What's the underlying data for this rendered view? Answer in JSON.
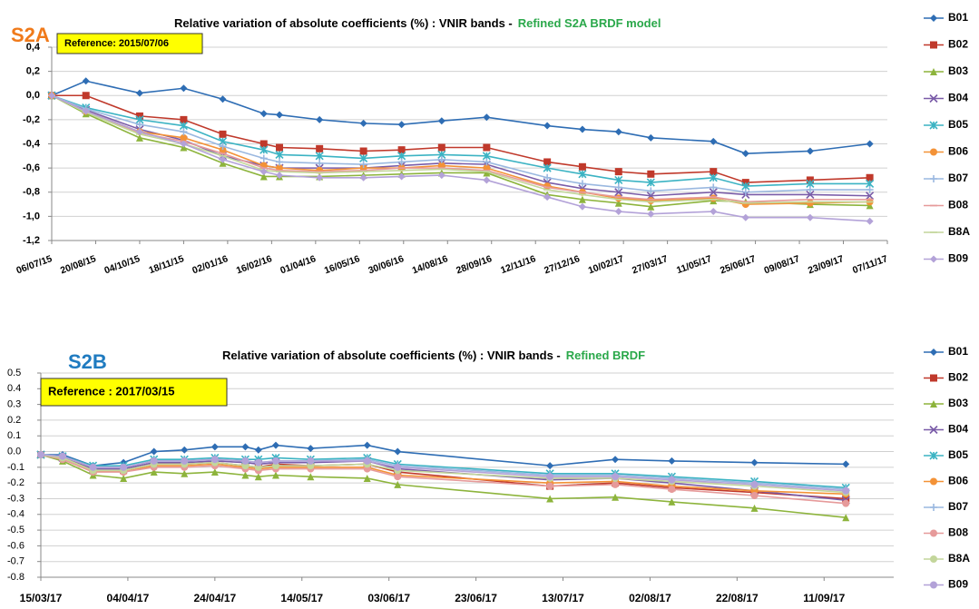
{
  "chart_data": [
    {
      "type": "line",
      "label": "S2A",
      "title": "Relative variation of absolute coefficients  (%) : VNIR bands   -",
      "subtitle": "Refined S2A BRDF model",
      "annotation": "Reference:  2015/07/06",
      "x": [
        "06/07/15",
        "10/08/15",
        "04/10/15",
        "18/11/15",
        "28/12/15",
        "08/02/16",
        "24/02/16",
        "05/04/16",
        "20/05/16",
        "28/06/16",
        "08/08/16",
        "23/09/16",
        "24/11/16",
        "30/12/16",
        "05/02/17",
        "10/03/17",
        "13/05/17",
        "15/06/17",
        "20/08/17",
        "20/10/17"
      ],
      "xlim": [
        "06/07/15",
        "07/11/17"
      ],
      "xticks": [
        "06/07/15",
        "20/08/15",
        "04/10/15",
        "18/11/15",
        "02/01/16",
        "16/02/16",
        "01/04/16",
        "16/05/16",
        "30/06/16",
        "14/08/16",
        "28/09/16",
        "12/11/16",
        "27/12/16",
        "10/02/17",
        "27/03/17",
        "11/05/17",
        "25/06/17",
        "09/08/17",
        "23/09/17",
        "07/11/17"
      ],
      "ylim": [
        -1.2,
        0.4
      ],
      "yticks": [
        {
          "value": 0.4,
          "label": "0,4"
        },
        {
          "value": 0.2,
          "label": "0,2"
        },
        {
          "value": 0,
          "label": "0,0"
        },
        {
          "value": -0.2,
          "label": "-0,2"
        },
        {
          "value": -0.4,
          "label": "-0,4"
        },
        {
          "value": -0.6,
          "label": "-0,6"
        },
        {
          "value": -0.8,
          "label": "-0,8"
        },
        {
          "value": -1,
          "label": "-1,0"
        },
        {
          "value": -1.2,
          "label": "-1,2"
        }
      ],
      "grid": true,
      "series": [
        {
          "name": "B01",
          "color": "#2e6db4",
          "marker": "diamond",
          "values": [
            0,
            0.12,
            0.02,
            0.06,
            -0.03,
            -0.15,
            -0.16,
            -0.2,
            -0.23,
            -0.24,
            -0.21,
            -0.18,
            -0.25,
            -0.28,
            -0.3,
            -0.35,
            -0.38,
            -0.48,
            -0.46,
            -0.4
          ]
        },
        {
          "name": "B02",
          "color": "#c0392b",
          "marker": "square",
          "values": [
            0,
            0,
            -0.17,
            -0.2,
            -0.32,
            -0.4,
            -0.43,
            -0.44,
            -0.46,
            -0.45,
            -0.43,
            -0.43,
            -0.55,
            -0.59,
            -0.63,
            -0.65,
            -0.63,
            -0.72,
            -0.7,
            -0.68
          ]
        },
        {
          "name": "B03",
          "color": "#8db43c",
          "marker": "triangle",
          "values": [
            0,
            -0.15,
            -0.35,
            -0.43,
            -0.56,
            -0.67,
            -0.67,
            -0.67,
            -0.66,
            -0.65,
            -0.64,
            -0.64,
            -0.82,
            -0.86,
            -0.89,
            -0.92,
            -0.87,
            -0.88,
            -0.9,
            -0.91
          ]
        },
        {
          "name": "B04",
          "color": "#7a5ca8",
          "marker": "x",
          "values": [
            0,
            -0.12,
            -0.28,
            -0.37,
            -0.5,
            -0.58,
            -0.6,
            -0.6,
            -0.6,
            -0.58,
            -0.56,
            -0.57,
            -0.72,
            -0.77,
            -0.8,
            -0.83,
            -0.8,
            -0.82,
            -0.82,
            -0.83
          ]
        },
        {
          "name": "B05",
          "color": "#3bb3c3",
          "marker": "star",
          "values": [
            0,
            -0.1,
            -0.2,
            -0.25,
            -0.38,
            -0.45,
            -0.49,
            -0.5,
            -0.52,
            -0.5,
            -0.49,
            -0.5,
            -0.6,
            -0.65,
            -0.7,
            -0.72,
            -0.68,
            -0.75,
            -0.73,
            -0.73
          ]
        },
        {
          "name": "B06",
          "color": "#f39237",
          "marker": "circle",
          "values": [
            0,
            -0.13,
            -0.3,
            -0.35,
            -0.45,
            -0.58,
            -0.6,
            -0.62,
            -0.6,
            -0.6,
            -0.58,
            -0.6,
            -0.75,
            -0.8,
            -0.85,
            -0.87,
            -0.85,
            -0.9,
            -0.89,
            -0.88
          ]
        },
        {
          "name": "B07",
          "color": "#9ab8e0",
          "marker": "plus",
          "values": [
            0,
            -0.11,
            -0.24,
            -0.3,
            -0.42,
            -0.52,
            -0.55,
            -0.56,
            -0.57,
            -0.55,
            -0.53,
            -0.55,
            -0.68,
            -0.73,
            -0.76,
            -0.79,
            -0.76,
            -0.8,
            -0.78,
            -0.78
          ]
        },
        {
          "name": "B08",
          "color": "#e69a9a",
          "marker": "dash",
          "values": [
            0,
            -0.13,
            -0.31,
            -0.38,
            -0.48,
            -0.6,
            -0.62,
            -0.63,
            -0.62,
            -0.6,
            -0.6,
            -0.62,
            -0.76,
            -0.8,
            -0.84,
            -0.86,
            -0.84,
            -0.88,
            -0.86,
            -0.86
          ]
        },
        {
          "name": "B8A",
          "color": "#c3d69b",
          "marker": "dash",
          "values": [
            0,
            -0.14,
            -0.32,
            -0.4,
            -0.5,
            -0.62,
            -0.63,
            -0.64,
            -0.63,
            -0.62,
            -0.61,
            -0.63,
            -0.78,
            -0.82,
            -0.86,
            -0.88,
            -0.86,
            -0.89,
            -0.88,
            -0.88
          ]
        },
        {
          "name": "B09",
          "color": "#b3a2d8",
          "marker": "diamond",
          "values": [
            0,
            -0.13,
            -0.3,
            -0.4,
            -0.53,
            -0.63,
            -0.66,
            -0.68,
            -0.68,
            -0.67,
            -0.66,
            -0.7,
            -0.84,
            -0.92,
            -0.96,
            -0.98,
            -0.96,
            -1.01,
            -1.01,
            -1.04
          ]
        }
      ]
    },
    {
      "type": "line",
      "label": "S2B",
      "title": "Relative variation of absolute coefficients  (%) : VNIR bands   -",
      "subtitle": "Refined BRDF",
      "annotation": "Reference :  2017/03/15",
      "x": [
        "15/03/17",
        "20/03/17",
        "27/03/17",
        "03/04/17",
        "10/04/17",
        "17/04/17",
        "24/04/17",
        "01/05/17",
        "04/05/17",
        "08/05/17",
        "16/05/17",
        "29/05/17",
        "05/06/17",
        "10/07/17",
        "25/07/17",
        "07/08/17",
        "26/08/17",
        "16/09/17"
      ],
      "xlim": [
        "15/03/17",
        "27/09/17"
      ],
      "xticks": [
        "15/03/17",
        "04/04/17",
        "24/04/17",
        "14/05/17",
        "03/06/17",
        "23/06/17",
        "13/07/17",
        "02/08/17",
        "22/08/17",
        "11/09/17"
      ],
      "ylim": [
        -0.8,
        0.5
      ],
      "yticks": [
        0.5,
        0.4,
        0.3,
        0.2,
        0.1,
        {
          "value": 0,
          "label": "0.0"
        },
        -0.1,
        -0.2,
        -0.3,
        -0.4,
        -0.5,
        -0.6,
        -0.7,
        -0.8
      ],
      "grid": true,
      "series": [
        {
          "name": "B01",
          "color": "#2e6db4",
          "marker": "diamond",
          "values": [
            -0.02,
            -0.02,
            -0.09,
            -0.07,
            0,
            0.01,
            0.03,
            0.03,
            0.01,
            0.04,
            0.02,
            0.04,
            0,
            -0.09,
            -0.05,
            -0.06,
            -0.07,
            -0.08
          ]
        },
        {
          "name": "B02",
          "color": "#c0392b",
          "marker": "square",
          "values": [
            -0.02,
            -0.04,
            -0.12,
            -0.12,
            -0.08,
            -0.08,
            -0.07,
            -0.09,
            -0.1,
            -0.08,
            -0.09,
            -0.08,
            -0.13,
            -0.22,
            -0.2,
            -0.23,
            -0.26,
            -0.3
          ]
        },
        {
          "name": "B03",
          "color": "#8db43c",
          "marker": "triangle",
          "values": [
            -0.02,
            -0.06,
            -0.15,
            -0.17,
            -0.13,
            -0.14,
            -0.13,
            -0.15,
            -0.16,
            -0.15,
            -0.16,
            -0.17,
            -0.21,
            -0.3,
            -0.29,
            -0.32,
            -0.36,
            -0.42
          ]
        },
        {
          "name": "B04",
          "color": "#7a5ca8",
          "marker": "x",
          "values": [
            -0.02,
            -0.04,
            -0.11,
            -0.11,
            -0.07,
            -0.07,
            -0.06,
            -0.07,
            -0.08,
            -0.07,
            -0.07,
            -0.06,
            -0.11,
            -0.18,
            -0.17,
            -0.2,
            -0.25,
            -0.31
          ]
        },
        {
          "name": "B05",
          "color": "#3bb3c3",
          "marker": "star",
          "values": [
            -0.02,
            -0.03,
            -0.09,
            -0.09,
            -0.05,
            -0.05,
            -0.04,
            -0.05,
            -0.05,
            -0.04,
            -0.05,
            -0.04,
            -0.08,
            -0.14,
            -0.14,
            -0.16,
            -0.19,
            -0.23
          ]
        },
        {
          "name": "B06",
          "color": "#f39237",
          "marker": "circle",
          "values": [
            -0.02,
            -0.04,
            -0.12,
            -0.13,
            -0.09,
            -0.09,
            -0.08,
            -0.1,
            -0.11,
            -0.1,
            -0.1,
            -0.1,
            -0.15,
            -0.2,
            -0.19,
            -0.22,
            -0.25,
            -0.27
          ]
        },
        {
          "name": "B07",
          "color": "#9ab8e0",
          "marker": "plus",
          "values": [
            -0.02,
            -0.03,
            -0.1,
            -0.1,
            -0.06,
            -0.06,
            -0.05,
            -0.06,
            -0.07,
            -0.06,
            -0.06,
            -0.05,
            -0.09,
            -0.15,
            -0.15,
            -0.17,
            -0.2,
            -0.24
          ]
        },
        {
          "name": "B08",
          "color": "#e69a9a",
          "marker": "circle",
          "values": [
            -0.02,
            -0.05,
            -0.13,
            -0.13,
            -0.1,
            -0.1,
            -0.09,
            -0.11,
            -0.12,
            -0.11,
            -0.11,
            -0.11,
            -0.16,
            -0.22,
            -0.21,
            -0.24,
            -0.28,
            -0.33
          ]
        },
        {
          "name": "B8A",
          "color": "#c3d69b",
          "marker": "circle",
          "values": [
            -0.02,
            -0.04,
            -0.12,
            -0.12,
            -0.08,
            -0.08,
            -0.07,
            -0.09,
            -0.1,
            -0.09,
            -0.09,
            -0.08,
            -0.12,
            -0.17,
            -0.17,
            -0.19,
            -0.22,
            -0.26
          ]
        },
        {
          "name": "B09",
          "color": "#b3a2d8",
          "marker": "circle",
          "values": [
            -0.02,
            -0.03,
            -0.1,
            -0.1,
            -0.06,
            -0.06,
            -0.05,
            -0.06,
            -0.07,
            -0.06,
            -0.06,
            -0.06,
            -0.1,
            -0.16,
            -0.16,
            -0.18,
            -0.21,
            -0.25
          ]
        }
      ]
    }
  ]
}
